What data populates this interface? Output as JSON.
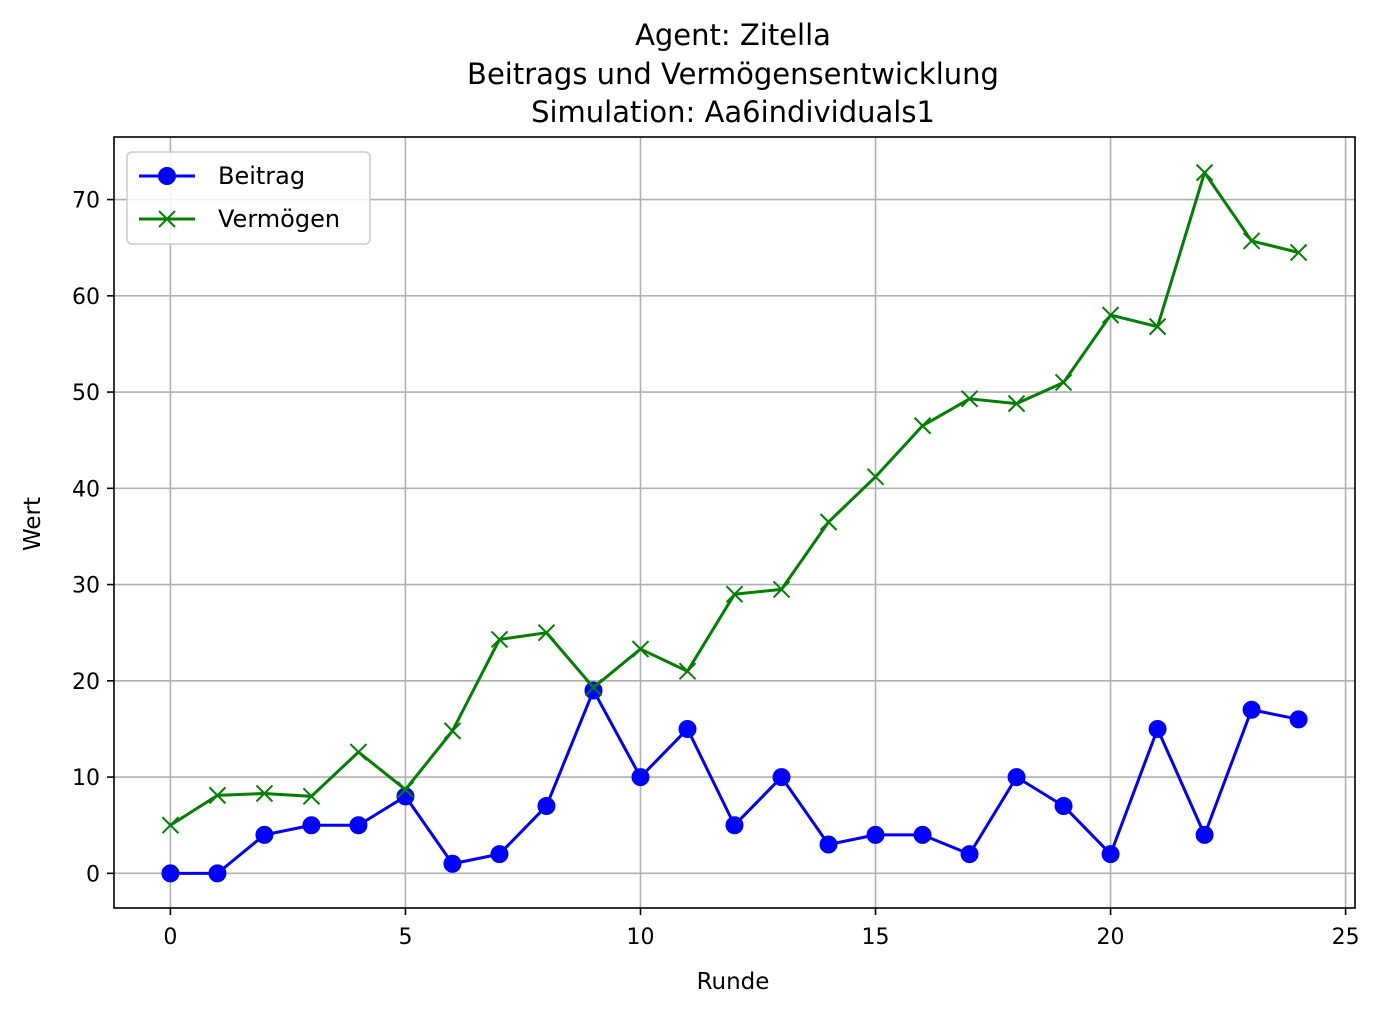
{
  "chart_data": {
    "type": "line",
    "title": [
      "Agent: Zitella",
      "Beitrags und Vermögensentwicklung",
      "Simulation: Aa6individuals1"
    ],
    "xlabel": "Runde",
    "ylabel": "Wert",
    "xlim": [
      -1.2,
      25.2
    ],
    "ylim": [
      -3.6,
      76.5
    ],
    "xticks": [
      0,
      5,
      10,
      15,
      20,
      25
    ],
    "yticks": [
      0,
      10,
      20,
      30,
      40,
      50,
      60,
      70
    ],
    "grid": true,
    "legend_position": "top-left",
    "x": [
      0,
      1,
      2,
      3,
      4,
      5,
      6,
      7,
      8,
      9,
      10,
      11,
      12,
      13,
      14,
      15,
      16,
      17,
      18,
      19,
      20,
      21,
      22,
      23,
      24
    ],
    "series": [
      {
        "name": "Beitrag",
        "color": "#0000ff",
        "marker": "circle",
        "values": [
          0,
          0,
          4,
          5,
          5,
          8,
          1,
          2,
          7,
          19,
          10,
          15,
          5,
          10,
          3,
          4,
          4,
          2,
          10,
          7,
          2,
          15,
          4,
          17,
          16
        ]
      },
      {
        "name": "Vermögen",
        "color": "#008000",
        "marker": "x",
        "values": [
          5,
          8.1,
          8.3,
          8.0,
          12.6,
          8.7,
          14.8,
          24.3,
          25.0,
          19.3,
          23.3,
          21.0,
          29.0,
          29.5,
          36.5,
          41.2,
          46.5,
          49.3,
          48.8,
          51.0,
          58.0,
          56.8,
          72.8,
          65.7,
          64.5
        ]
      }
    ]
  }
}
